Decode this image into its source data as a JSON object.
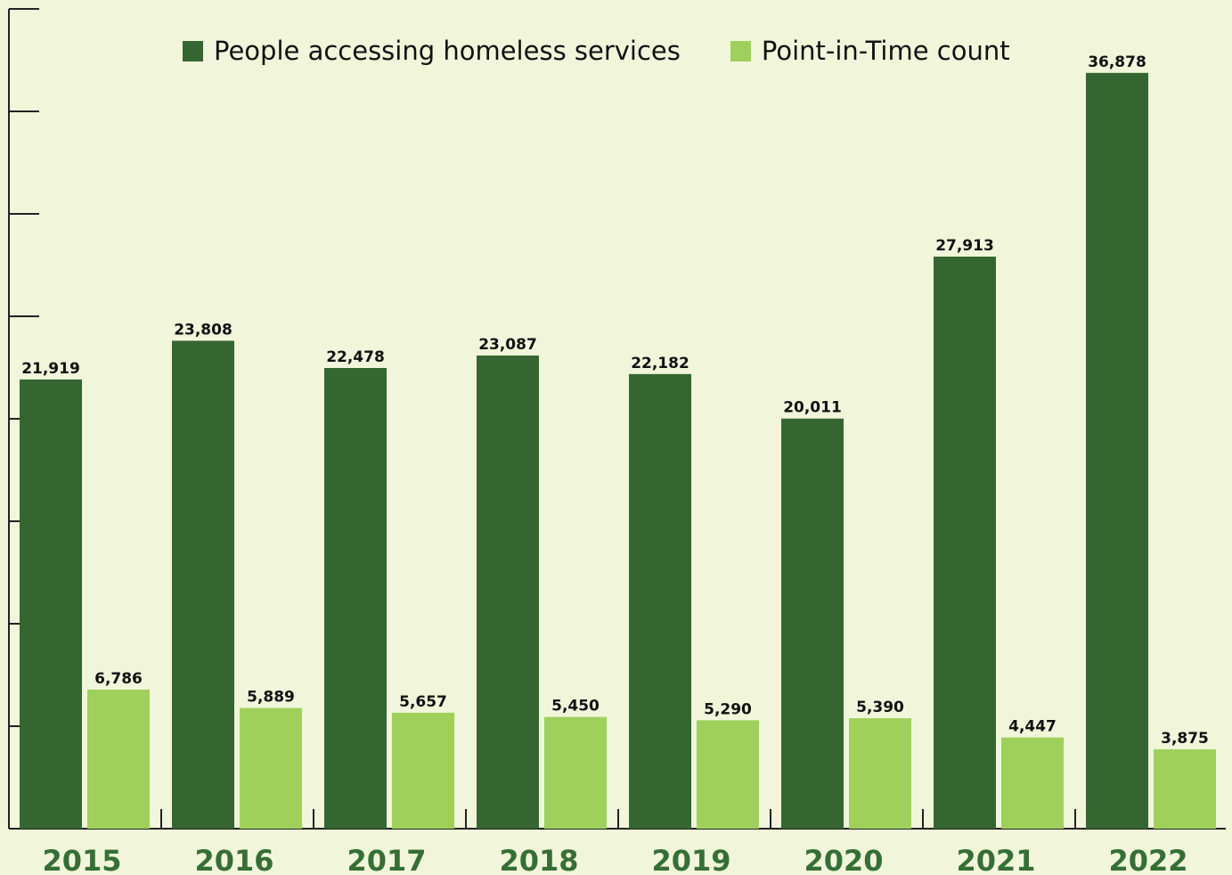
{
  "chart_data": {
    "type": "bar",
    "title": "",
    "xlabel": "",
    "ylabel": "",
    "categories": [
      "2015",
      "2016",
      "2017",
      "2018",
      "2019",
      "2020",
      "2021",
      "2022"
    ],
    "series": [
      {
        "name": "People accessing homeless services",
        "color": "#356631",
        "values": [
          21919,
          23808,
          22478,
          23087,
          22182,
          20011,
          27913,
          36878
        ],
        "labels": [
          "21,919",
          "23,808",
          "22,478",
          "23,087",
          "22,182",
          "20,011",
          "27,913",
          "36,878"
        ]
      },
      {
        "name": "Point-in-Time count",
        "color": "#9fd05b",
        "values": [
          6786,
          5889,
          5657,
          5450,
          5290,
          5390,
          4447,
          3875
        ],
        "labels": [
          "6,786",
          "5,889",
          "5,657",
          "5,450",
          "5,290",
          "5,390",
          "4,447",
          "3,875"
        ]
      }
    ],
    "ylim": [
      0,
      40000
    ],
    "y_ticks": [
      0,
      5000,
      10000,
      15000,
      20000,
      25000,
      30000,
      35000,
      40000
    ],
    "y_tick_labels_shown": false,
    "grid": false,
    "legend_position": "top"
  }
}
